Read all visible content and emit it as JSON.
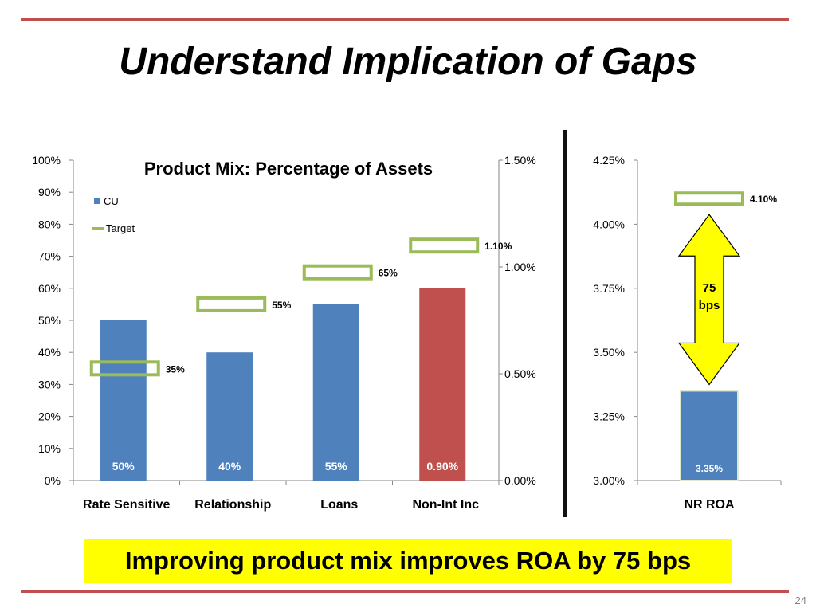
{
  "slide": {
    "title": "Understand Implication of Gaps",
    "banner": "Improving product mix improves ROA by 75 bps",
    "page_number": "24"
  },
  "colors": {
    "rule": "#c0504d",
    "cu_bar": "#4f81bd",
    "non_int_bar": "#c0504d",
    "target_outline": "#9bbb59",
    "arrow_fill": "#ffff00",
    "banner": "#ffff00"
  },
  "chart_data": [
    {
      "type": "bar",
      "title": "Product Mix: Percentage of Assets",
      "categories": [
        "Rate Sensitive",
        "Relationship",
        "Loans",
        "Non-Int Inc"
      ],
      "left_axis": {
        "min": 0,
        "max": 100,
        "step": 10,
        "ticks": [
          "0%",
          "10%",
          "20%",
          "30%",
          "40%",
          "50%",
          "60%",
          "70%",
          "80%",
          "90%",
          "100%"
        ]
      },
      "right_axis": {
        "min": 0,
        "max": 1.5,
        "ticks": [
          "0.00%",
          "0.50%",
          "1.00%",
          "1.50%"
        ]
      },
      "legend": {
        "position": "top-left",
        "entries": [
          "CU",
          "Target"
        ]
      },
      "series": [
        {
          "name": "CU",
          "axis": [
            "left",
            "left",
            "left",
            "right"
          ],
          "values": [
            50,
            40,
            55,
            0.9
          ],
          "labels": [
            "50%",
            "40%",
            "55%",
            "0.90%"
          ]
        },
        {
          "name": "Target",
          "axis": [
            "left",
            "left",
            "left",
            "right"
          ],
          "values": [
            35,
            55,
            65,
            1.1
          ],
          "labels": [
            "35%",
            "55%",
            "65%",
            "1.10%"
          ]
        }
      ]
    },
    {
      "type": "bar",
      "categories": [
        "NR ROA"
      ],
      "axis": {
        "min": 3.0,
        "max": 4.25,
        "ticks": [
          "3.00%",
          "3.25%",
          "3.50%",
          "3.75%",
          "4.00%",
          "4.25%"
        ]
      },
      "series": [
        {
          "name": "CU",
          "values": [
            3.35
          ],
          "labels": [
            "3.35%"
          ]
        },
        {
          "name": "Target",
          "values": [
            4.1
          ],
          "labels": [
            "4.10%"
          ]
        }
      ],
      "annotation": {
        "line1": "75",
        "line2": "bps"
      }
    }
  ]
}
